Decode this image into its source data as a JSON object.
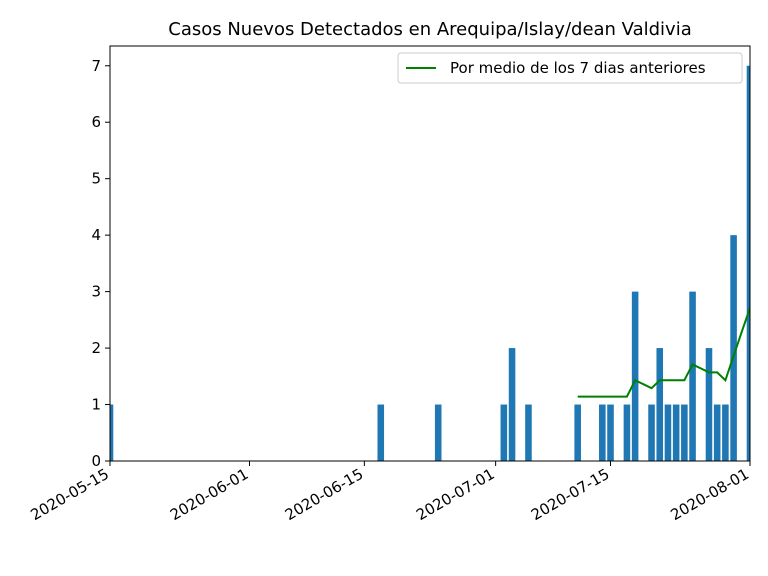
{
  "chart_data": {
    "type": "bar",
    "title": "Casos Nuevos Detectados en Arequipa/Islay/dean Valdivia",
    "xlabel": "",
    "ylabel": "",
    "x_range": [
      "2020-05-15",
      "2020-08-01"
    ],
    "ylim": [
      0,
      7.35
    ],
    "x_ticks": [
      "2020-05-15",
      "2020-06-01",
      "2020-06-15",
      "2020-07-01",
      "2020-07-15",
      "2020-08-01"
    ],
    "y_ticks": [
      0,
      1,
      2,
      3,
      4,
      5,
      6,
      7
    ],
    "grid": false,
    "legend_position": "top-right",
    "bar_color": "#1f77b4",
    "bars": [
      {
        "date": "2020-05-15",
        "value": 1
      },
      {
        "date": "2020-06-17",
        "value": 1
      },
      {
        "date": "2020-06-24",
        "value": 1
      },
      {
        "date": "2020-07-02",
        "value": 1
      },
      {
        "date": "2020-07-03",
        "value": 2
      },
      {
        "date": "2020-07-05",
        "value": 1
      },
      {
        "date": "2020-07-11",
        "value": 1
      },
      {
        "date": "2020-07-14",
        "value": 1
      },
      {
        "date": "2020-07-15",
        "value": 1
      },
      {
        "date": "2020-07-17",
        "value": 1
      },
      {
        "date": "2020-07-18",
        "value": 3
      },
      {
        "date": "2020-07-20",
        "value": 1
      },
      {
        "date": "2020-07-21",
        "value": 2
      },
      {
        "date": "2020-07-22",
        "value": 1
      },
      {
        "date": "2020-07-23",
        "value": 1
      },
      {
        "date": "2020-07-24",
        "value": 1
      },
      {
        "date": "2020-07-25",
        "value": 3
      },
      {
        "date": "2020-07-27",
        "value": 2
      },
      {
        "date": "2020-07-28",
        "value": 1
      },
      {
        "date": "2020-07-29",
        "value": 1
      },
      {
        "date": "2020-07-30",
        "value": 4
      },
      {
        "date": "2020-08-01",
        "value": 7
      }
    ],
    "series": [
      {
        "name": "Por medio de los 7 dias anteriores",
        "type": "line",
        "color": "#008000",
        "points": [
          {
            "date": "2020-07-11",
            "value": 1.14
          },
          {
            "date": "2020-07-12",
            "value": 1.14
          },
          {
            "date": "2020-07-13",
            "value": 1.14
          },
          {
            "date": "2020-07-14",
            "value": 1.14
          },
          {
            "date": "2020-07-15",
            "value": 1.14
          },
          {
            "date": "2020-07-16",
            "value": 1.14
          },
          {
            "date": "2020-07-17",
            "value": 1.14
          },
          {
            "date": "2020-07-18",
            "value": 1.43
          },
          {
            "date": "2020-07-19",
            "value": 1.36
          },
          {
            "date": "2020-07-20",
            "value": 1.29
          },
          {
            "date": "2020-07-21",
            "value": 1.43
          },
          {
            "date": "2020-07-22",
            "value": 1.43
          },
          {
            "date": "2020-07-23",
            "value": 1.43
          },
          {
            "date": "2020-07-24",
            "value": 1.43
          },
          {
            "date": "2020-07-25",
            "value": 1.71
          },
          {
            "date": "2020-07-26",
            "value": 1.64
          },
          {
            "date": "2020-07-27",
            "value": 1.57
          },
          {
            "date": "2020-07-28",
            "value": 1.57
          },
          {
            "date": "2020-07-29",
            "value": 1.43
          },
          {
            "date": "2020-07-30",
            "value": 1.86
          },
          {
            "date": "2020-07-31",
            "value": 2.29
          },
          {
            "date": "2020-08-01",
            "value": 2.71
          }
        ]
      }
    ]
  }
}
